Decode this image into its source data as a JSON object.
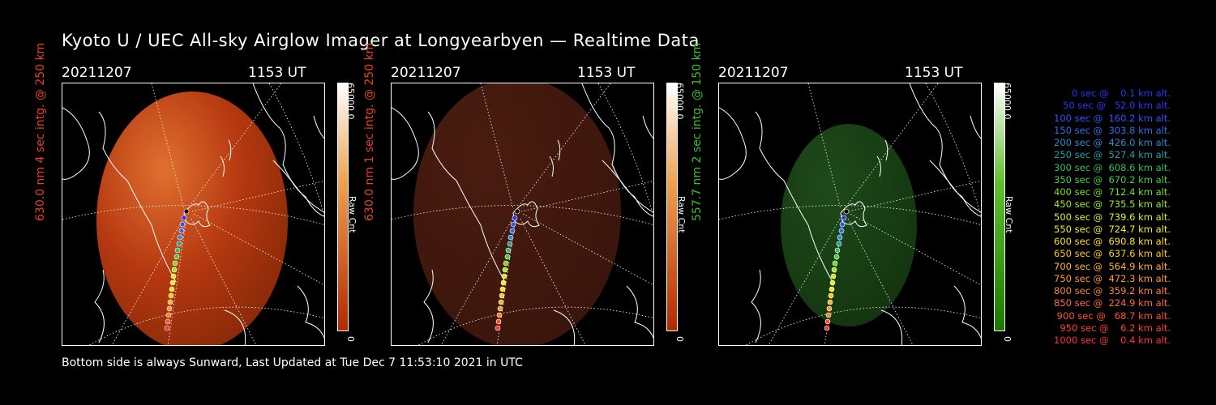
{
  "title": "Kyoto U / UEC All-sky Airglow Imager at Longyearbyen — Realtime Data",
  "footer": "Bottom side is always Sunward, Last Updated at Tue Dec  7 11:53:10 2021 in UTC",
  "panels": [
    {
      "date": "20211207",
      "time": "1153 UT",
      "side_label": "630.0 nm 4 sec intg. @ 250 km",
      "side_color": "#e84020",
      "cbar_max": "65000.0",
      "cbar_min": "0",
      "cbar_unit": "Raw Cnt",
      "glow": "red-bright"
    },
    {
      "date": "20211207",
      "time": "1153 UT",
      "side_label": "630.0 nm 1 sec intg. @ 250 km",
      "side_color": "#e84020",
      "cbar_max": "65000.0",
      "cbar_min": "0",
      "cbar_unit": "Raw Cnt",
      "glow": "red-dim"
    },
    {
      "date": "20211207",
      "time": "1153 UT",
      "side_label": "557.7 nm 2 sec intg. @ 150 km",
      "side_color": "#39c12a",
      "cbar_max": "65000.0",
      "cbar_min": "0",
      "cbar_unit": "Raw Cnt",
      "glow": "green"
    }
  ],
  "colors": {
    "red_bar_top": "#ffffff",
    "red_bar_bottom": "#b32800",
    "green_bar_bottom": "#1a7a00"
  },
  "legend": [
    {
      "text": "   0 sec @    0.1 km alt.",
      "color": "#3030ff"
    },
    {
      "text": "  50 sec @   52.0 km alt.",
      "color": "#3030ff"
    },
    {
      "text": " 100 sec @  160.2 km alt.",
      "color": "#2b55ff"
    },
    {
      "text": " 150 sec @  303.8 km alt.",
      "color": "#2b6ff0"
    },
    {
      "text": " 200 sec @  426.0 km alt.",
      "color": "#2a8ad0"
    },
    {
      "text": " 250 sec @  527.4 km alt.",
      "color": "#22a0a0"
    },
    {
      "text": " 300 sec @  608.6 km alt.",
      "color": "#28c060"
    },
    {
      "text": " 350 sec @  670.2 km alt.",
      "color": "#40d040"
    },
    {
      "text": " 400 sec @  712.4 km alt.",
      "color": "#70e020"
    },
    {
      "text": " 450 sec @  735.5 km alt.",
      "color": "#a0e820"
    },
    {
      "text": " 500 sec @  739.6 km alt.",
      "color": "#d0f020"
    },
    {
      "text": " 550 sec @  724.7 km alt.",
      "color": "#f0f020"
    },
    {
      "text": " 600 sec @  690.8 km alt.",
      "color": "#ffe020"
    },
    {
      "text": " 650 sec @  637.6 km alt.",
      "color": "#ffc820"
    },
    {
      "text": " 700 sec @  564.9 km alt.",
      "color": "#ffb030"
    },
    {
      "text": " 750 sec @  472.3 km alt.",
      "color": "#ff9830"
    },
    {
      "text": " 800 sec @  359.2 km alt.",
      "color": "#ff8030"
    },
    {
      "text": " 850 sec @  224.9 km alt.",
      "color": "#ff6a30"
    },
    {
      "text": " 900 sec @   68.7 km alt.",
      "color": "#ff5030"
    },
    {
      "text": " 950 sec @    6.2 km alt.",
      "color": "#ff4030"
    },
    {
      "text": "1000 sec @    0.4 km alt.",
      "color": "#ff3030"
    }
  ]
}
